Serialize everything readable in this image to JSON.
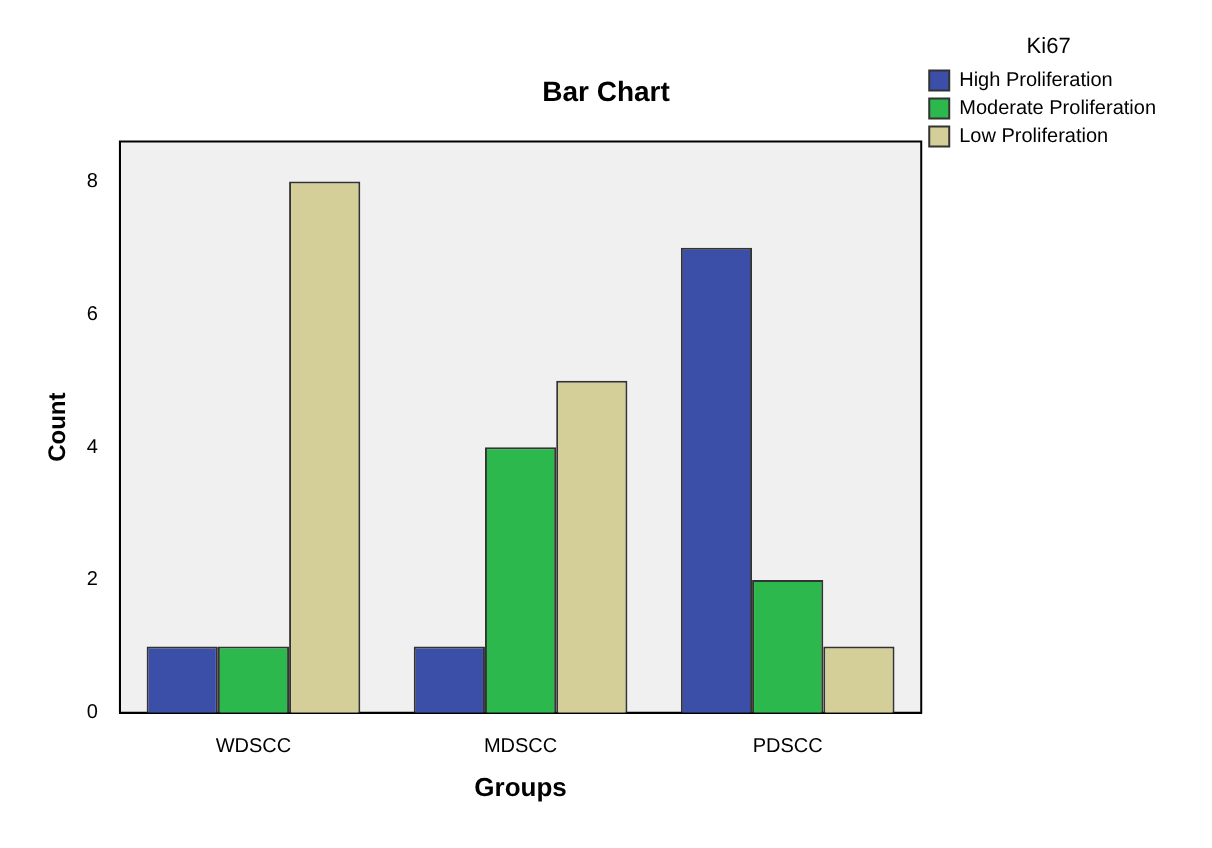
{
  "chart_data": {
    "type": "bar",
    "title": "Bar Chart",
    "xlabel": "Groups",
    "ylabel": "Count",
    "legend_title": "Ki67",
    "categories": [
      "WDSCC",
      "MDSCC",
      "PDSCC"
    ],
    "series": [
      {
        "name": "High Proliferation",
        "color": "#3c4fa8",
        "values": [
          1,
          1,
          7
        ]
      },
      {
        "name": "Moderate Proliferation",
        "color": "#2db84d",
        "values": [
          1,
          4,
          2
        ]
      },
      {
        "name": "Low Proliferation",
        "color": "#d4cf98",
        "values": [
          8,
          5,
          1
        ]
      }
    ],
    "ylim": [
      0,
      8.6
    ],
    "yticks": [
      0,
      2,
      4,
      6,
      8
    ],
    "grid": false,
    "legend": "top right"
  }
}
